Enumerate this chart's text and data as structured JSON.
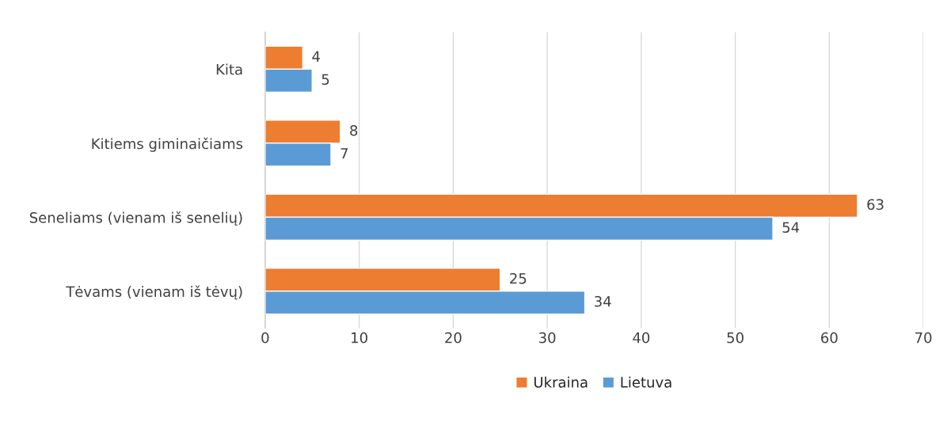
{
  "chart_data": {
    "type": "bar",
    "orientation": "horizontal",
    "categories": [
      "Kita",
      "Kitiems giminaičiams",
      "Seneliams (vienam iš senelių)",
      "Tėvams (vienam iš tėvų)"
    ],
    "series": [
      {
        "name": "Ukraina",
        "color": "#ed7d31",
        "values": [
          4,
          8,
          63,
          25
        ]
      },
      {
        "name": "Lietuva",
        "color": "#5b9bd5",
        "values": [
          5,
          7,
          54,
          34
        ]
      }
    ],
    "xlim": [
      0,
      70
    ],
    "xticks": [
      0,
      10,
      20,
      30,
      40,
      50,
      60,
      70
    ],
    "grid": "x",
    "legend": "bottom",
    "data_labels": true
  }
}
